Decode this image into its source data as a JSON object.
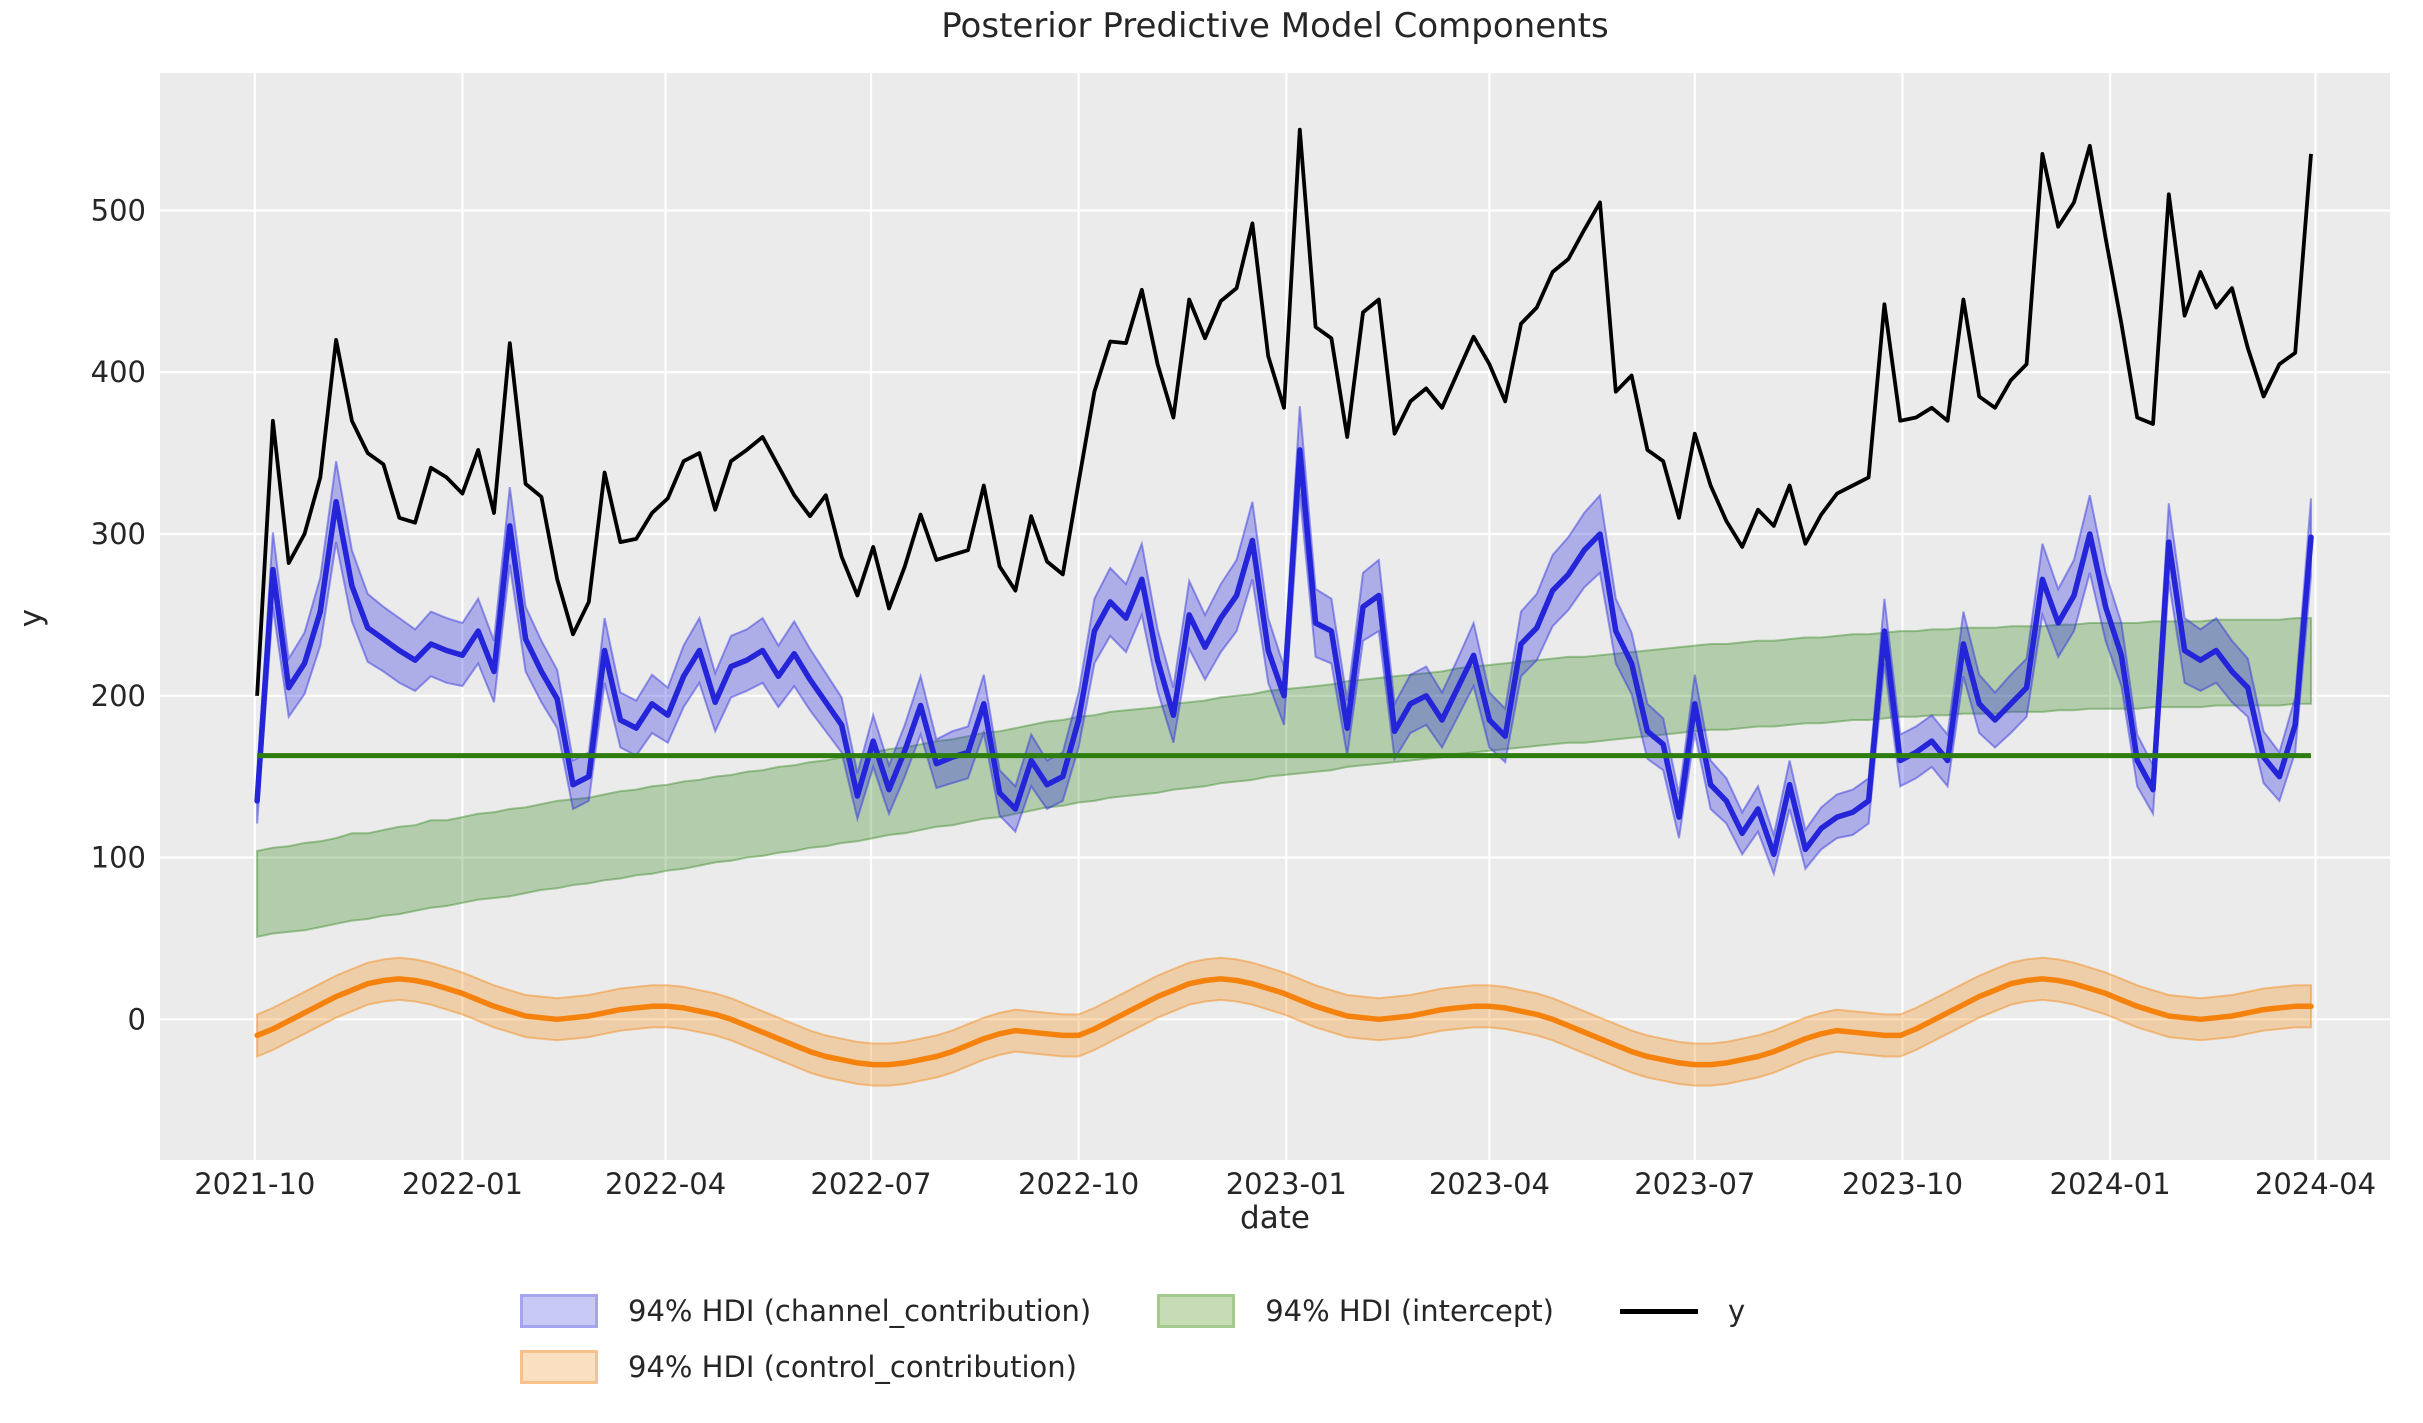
{
  "title": "Posterior Predictive Model Components",
  "axis": {
    "xlabel": "date",
    "ylabel": "y",
    "x_ticks": [
      {
        "label": "2021-10",
        "date": "2021-10-01"
      },
      {
        "label": "2022-01",
        "date": "2022-01-01"
      },
      {
        "label": "2022-04",
        "date": "2022-04-01"
      },
      {
        "label": "2022-07",
        "date": "2022-07-01"
      },
      {
        "label": "2022-10",
        "date": "2022-10-01"
      },
      {
        "label": "2023-01",
        "date": "2023-01-01"
      },
      {
        "label": "2023-04",
        "date": "2023-04-01"
      },
      {
        "label": "2023-07",
        "date": "2023-07-01"
      },
      {
        "label": "2023-10",
        "date": "2023-10-01"
      },
      {
        "label": "2024-01",
        "date": "2024-01-01"
      },
      {
        "label": "2024-04",
        "date": "2024-04-01"
      }
    ],
    "y_ticks": [
      0,
      100,
      200,
      300,
      400,
      500
    ],
    "xlim": [
      "2021-08-20",
      "2024-05-04"
    ],
    "ylim": [
      -87,
      585
    ],
    "grid": true
  },
  "legend": {
    "row1": [
      {
        "label": "94% HDI (channel_contribution)",
        "type": "patch",
        "fill": "#c9c9f6",
        "edge": "#a5a5ee"
      },
      {
        "label": "94% HDI (intercept)",
        "type": "patch",
        "fill": "#c5dcb7",
        "edge": "#a3cb90"
      },
      {
        "label": "y",
        "type": "line",
        "color": "#000000"
      }
    ],
    "row2": [
      {
        "label": "94% HDI (control_contribution)",
        "type": "patch",
        "fill": "#fbdfc1",
        "edge": "#f6c18b"
      }
    ]
  },
  "colors": {
    "plot_bg": "#ebebeb",
    "grid": "#ffffff",
    "text": "#262626",
    "y_line": "#000000",
    "channel_line": "#2424d8",
    "channel_band": "#2a2ae0",
    "intercept_band": "#3c8c28",
    "intercept_line": "#2d7d0f",
    "control_line": "#f5820d",
    "control_band": "#f5870f"
  },
  "chart_data": {
    "type": "line",
    "title": "Posterior Predictive Model Components",
    "xlabel": "date",
    "ylabel": "y",
    "x_freq": "weekly",
    "legend_position": "below",
    "dates": [
      "2021-10-02",
      "2021-10-09",
      "2021-10-16",
      "2021-10-23",
      "2021-10-30",
      "2021-11-06",
      "2021-11-13",
      "2021-11-20",
      "2021-11-27",
      "2021-12-04",
      "2021-12-11",
      "2021-12-18",
      "2021-12-25",
      "2022-01-01",
      "2022-01-08",
      "2022-01-15",
      "2022-01-22",
      "2022-01-29",
      "2022-02-05",
      "2022-02-12",
      "2022-02-19",
      "2022-02-26",
      "2022-03-05",
      "2022-03-12",
      "2022-03-19",
      "2022-03-26",
      "2022-04-02",
      "2022-04-09",
      "2022-04-16",
      "2022-04-23",
      "2022-04-30",
      "2022-05-07",
      "2022-05-14",
      "2022-05-21",
      "2022-05-28",
      "2022-06-04",
      "2022-06-11",
      "2022-06-18",
      "2022-06-25",
      "2022-07-02",
      "2022-07-09",
      "2022-07-16",
      "2022-07-23",
      "2022-07-30",
      "2022-08-06",
      "2022-08-13",
      "2022-08-20",
      "2022-08-27",
      "2022-09-03",
      "2022-09-10",
      "2022-09-17",
      "2022-09-24",
      "2022-10-01",
      "2022-10-08",
      "2022-10-15",
      "2022-10-22",
      "2022-10-29",
      "2022-11-05",
      "2022-11-12",
      "2022-11-19",
      "2022-11-26",
      "2022-12-03",
      "2022-12-10",
      "2022-12-17",
      "2022-12-24",
      "2022-12-31",
      "2023-01-07",
      "2023-01-14",
      "2023-01-21",
      "2023-01-28",
      "2023-02-04",
      "2023-02-11",
      "2023-02-18",
      "2023-02-25",
      "2023-03-04",
      "2023-03-11",
      "2023-03-18",
      "2023-03-25",
      "2023-04-01",
      "2023-04-08",
      "2023-04-15",
      "2023-04-22",
      "2023-04-29",
      "2023-05-06",
      "2023-05-13",
      "2023-05-20",
      "2023-05-27",
      "2023-06-03",
      "2023-06-10",
      "2023-06-17",
      "2023-06-24",
      "2023-07-01",
      "2023-07-08",
      "2023-07-15",
      "2023-07-22",
      "2023-07-29",
      "2023-08-05",
      "2023-08-12",
      "2023-08-19",
      "2023-08-26",
      "2023-09-02",
      "2023-09-09",
      "2023-09-16",
      "2023-09-23",
      "2023-09-30",
      "2023-10-07",
      "2023-10-14",
      "2023-10-21",
      "2023-10-28",
      "2023-11-04",
      "2023-11-11",
      "2023-11-18",
      "2023-11-25",
      "2023-12-02",
      "2023-12-09",
      "2023-12-16",
      "2023-12-23",
      "2023-12-30",
      "2024-01-06",
      "2024-01-13",
      "2024-01-20",
      "2024-01-27",
      "2024-02-03",
      "2024-02-10",
      "2024-02-17",
      "2024-02-24",
      "2024-03-02",
      "2024-03-09",
      "2024-03-16",
      "2024-03-23",
      "2024-03-30"
    ],
    "series": [
      {
        "name": "y",
        "kind": "line",
        "color": "#000000",
        "values": [
          200,
          370,
          282,
          300,
          335,
          420,
          370,
          350,
          343,
          310,
          307,
          341,
          335,
          325,
          352,
          313,
          418,
          331,
          323,
          272,
          238,
          258,
          338,
          295,
          297,
          313,
          322,
          345,
          350,
          315,
          345,
          352,
          360,
          342,
          324,
          311,
          324,
          286,
          262,
          292,
          254,
          280,
          312,
          284,
          287,
          290,
          330,
          280,
          265,
          311,
          283,
          275,
          332,
          388,
          419,
          418,
          451,
          405,
          372,
          445,
          421,
          444,
          452,
          492,
          410,
          378,
          550,
          428,
          421,
          360,
          437,
          445,
          362,
          382,
          390,
          378,
          400,
          422,
          405,
          382,
          430,
          440,
          462,
          470,
          488,
          505,
          388,
          398,
          352,
          345,
          310,
          362,
          330,
          308,
          292,
          315,
          305,
          330,
          294,
          312,
          325,
          330,
          335,
          442,
          370,
          372,
          378,
          370,
          445,
          385,
          378,
          395,
          405,
          535,
          490,
          505,
          540,
          483,
          430,
          372,
          368,
          510,
          435,
          462,
          440,
          452,
          415,
          385,
          405,
          412,
          535
        ]
      },
      {
        "name": "channel_contribution posterior mean",
        "kind": "line",
        "color": "#2424d8",
        "values": [
          135,
          278,
          205,
          220,
          252,
          320,
          268,
          242,
          235,
          228,
          222,
          232,
          228,
          225,
          240,
          215,
          305,
          235,
          215,
          198,
          145,
          150,
          228,
          185,
          180,
          195,
          188,
          212,
          228,
          196,
          218,
          222,
          228,
          212,
          226,
          210,
          196,
          182,
          138,
          172,
          142,
          166,
          194,
          158,
          162,
          165,
          195,
          140,
          130,
          160,
          145,
          150,
          185,
          240,
          258,
          248,
          272,
          222,
          188,
          250,
          230,
          248,
          262,
          296,
          228,
          200,
          352,
          245,
          240,
          180,
          255,
          262,
          178,
          195,
          200,
          185,
          205,
          225,
          185,
          175,
          232,
          242,
          265,
          275,
          290,
          300,
          240,
          220,
          178,
          170,
          125,
          195,
          145,
          135,
          115,
          130,
          102,
          145,
          105,
          118,
          125,
          128,
          135,
          240,
          160,
          165,
          172,
          160,
          232,
          195,
          185,
          195,
          205,
          272,
          245,
          262,
          300,
          255,
          225,
          160,
          142,
          295,
          228,
          222,
          228,
          215,
          205,
          162,
          150,
          182,
          298
        ]
      },
      {
        "name": "94% HDI (channel_contribution)",
        "kind": "band",
        "color": "#2a2ae0",
        "lo": [
          121,
          255,
          187,
          201,
          231,
          295,
          246,
          221,
          215,
          208,
          203,
          212,
          208,
          206,
          220,
          196,
          281,
          215,
          196,
          180,
          130,
          135,
          208,
          168,
          163,
          177,
          171,
          193,
          208,
          178,
          199,
          203,
          208,
          193,
          206,
          191,
          178,
          165,
          124,
          156,
          127,
          150,
          176,
          143,
          146,
          149,
          177,
          126,
          116,
          144,
          130,
          135,
          168,
          220,
          237,
          227,
          250,
          203,
          171,
          229,
          210,
          227,
          240,
          272,
          208,
          182,
          325,
          224,
          220,
          163,
          234,
          240,
          161,
          177,
          182,
          168,
          187,
          206,
          168,
          159,
          212,
          222,
          243,
          253,
          267,
          276,
          220,
          201,
          161,
          154,
          112,
          177,
          130,
          121,
          102,
          116,
          90,
          130,
          93,
          105,
          112,
          114,
          121,
          220,
          144,
          149,
          156,
          144,
          212,
          177,
          168,
          177,
          187,
          250,
          224,
          240,
          276,
          234,
          206,
          144,
          127,
          271,
          208,
          203,
          208,
          196,
          187,
          146,
          135,
          165,
          274
        ],
        "hi": [
          149,
          301,
          223,
          239,
          273,
          345,
          290,
          263,
          255,
          248,
          241,
          252,
          248,
          245,
          260,
          234,
          329,
          255,
          234,
          216,
          160,
          165,
          248,
          202,
          197,
          213,
          205,
          231,
          248,
          214,
          237,
          241,
          248,
          231,
          246,
          229,
          214,
          199,
          152,
          188,
          157,
          182,
          212,
          173,
          178,
          181,
          213,
          154,
          144,
          176,
          160,
          165,
          202,
          260,
          279,
          269,
          294,
          241,
          205,
          271,
          250,
          269,
          284,
          320,
          248,
          218,
          379,
          266,
          260,
          197,
          276,
          284,
          195,
          213,
          218,
          202,
          223,
          245,
          202,
          192,
          252,
          263,
          287,
          298,
          313,
          324,
          260,
          239,
          195,
          186,
          139,
          213,
          160,
          149,
          128,
          144,
          114,
          160,
          117,
          131,
          139,
          142,
          149,
          260,
          176,
          181,
          188,
          176,
          252,
          213,
          202,
          213,
          223,
          294,
          266,
          284,
          324,
          276,
          245,
          176,
          157,
          319,
          248,
          241,
          248,
          234,
          223,
          178,
          165,
          199,
          322
        ]
      },
      {
        "name": "94% HDI (intercept)",
        "kind": "band",
        "color": "#3c8c28",
        "lo": [
          51,
          53,
          54,
          55,
          57,
          59,
          61,
          62,
          64,
          65,
          67,
          69,
          70,
          72,
          74,
          75,
          76,
          78,
          80,
          81,
          83,
          84,
          86,
          87,
          89,
          90,
          92,
          93,
          95,
          97,
          98,
          100,
          101,
          103,
          104,
          106,
          107,
          109,
          110,
          112,
          114,
          115,
          117,
          119,
          120,
          122,
          124,
          125,
          127,
          129,
          131,
          132,
          134,
          135,
          137,
          138,
          139,
          140,
          142,
          143,
          144,
          146,
          147,
          148,
          150,
          151,
          152,
          153,
          154,
          156,
          157,
          158,
          159,
          160,
          161,
          162,
          164,
          165,
          166,
          167,
          168,
          169,
          170,
          171,
          171,
          172,
          173,
          174,
          175,
          176,
          177,
          178,
          179,
          179,
          180,
          181,
          181,
          182,
          183,
          183,
          184,
          185,
          185,
          186,
          187,
          187,
          188,
          188,
          189,
          189,
          189,
          190,
          190,
          190,
          191,
          191,
          192,
          192,
          192,
          192,
          193,
          193,
          193,
          193,
          194,
          194,
          194,
          194,
          194,
          195,
          195
        ],
        "hi": [
          104,
          106,
          107,
          109,
          110,
          112,
          115,
          115,
          117,
          119,
          120,
          123,
          123,
          125,
          127,
          128,
          130,
          131,
          133,
          135,
          136,
          137,
          139,
          141,
          142,
          144,
          145,
          147,
          148,
          150,
          151,
          153,
          154,
          156,
          157,
          159,
          160,
          162,
          163,
          165,
          167,
          168,
          170,
          172,
          173,
          175,
          177,
          178,
          180,
          182,
          184,
          185,
          187,
          188,
          190,
          191,
          192,
          193,
          195,
          196,
          197,
          199,
          200,
          201,
          203,
          204,
          205,
          206,
          207,
          209,
          210,
          211,
          212,
          213,
          214,
          215,
          217,
          218,
          219,
          220,
          221,
          222,
          223,
          224,
          224,
          225,
          226,
          227,
          228,
          229,
          230,
          231,
          232,
          232,
          233,
          234,
          234,
          235,
          236,
          236,
          237,
          238,
          238,
          239,
          240,
          240,
          241,
          241,
          242,
          242,
          242,
          243,
          243,
          243,
          244,
          244,
          245,
          245,
          245,
          245,
          246,
          246,
          246,
          246,
          247,
          247,
          247,
          247,
          247,
          248,
          248
        ]
      },
      {
        "name": "intercept reference line",
        "kind": "hline",
        "color": "#2d7d0f",
        "value": 163
      },
      {
        "name": "control_contribution posterior mean",
        "kind": "line",
        "color": "#f5820d",
        "values": [
          -10,
          -6,
          -1,
          4,
          9,
          14,
          18,
          22,
          24,
          25,
          24,
          22,
          19,
          16,
          12,
          8,
          5,
          2,
          1,
          0,
          1,
          2,
          4,
          6,
          7,
          8,
          8,
          7,
          5,
          3,
          0,
          -4,
          -8,
          -12,
          -16,
          -20,
          -23,
          -25,
          -27,
          -28,
          -28,
          -27,
          -25,
          -23,
          -20,
          -16,
          -12,
          -9,
          -7,
          -8,
          -9,
          -10,
          -10,
          -6,
          -1,
          4,
          9,
          14,
          18,
          22,
          24,
          25,
          24,
          22,
          19,
          16,
          12,
          8,
          5,
          2,
          1,
          0,
          1,
          2,
          4,
          6,
          7,
          8,
          8,
          7,
          5,
          3,
          0,
          -4,
          -8,
          -12,
          -16,
          -20,
          -23,
          -25,
          -27,
          -28,
          -28,
          -27,
          -25,
          -23,
          -20,
          -16,
          -12,
          -9,
          -7,
          -8,
          -9,
          -10,
          -10,
          -6,
          -1,
          4,
          9,
          14,
          18,
          22,
          24,
          25,
          24,
          22,
          19,
          16,
          12,
          8,
          5,
          2,
          1,
          0,
          1,
          2,
          4,
          6,
          7,
          8,
          8
        ]
      },
      {
        "name": "94% HDI (control_contribution)",
        "kind": "band_halfwidth",
        "color": "#f5870f",
        "of": "control_contribution posterior mean",
        "halfwidth": 13
      }
    ]
  }
}
